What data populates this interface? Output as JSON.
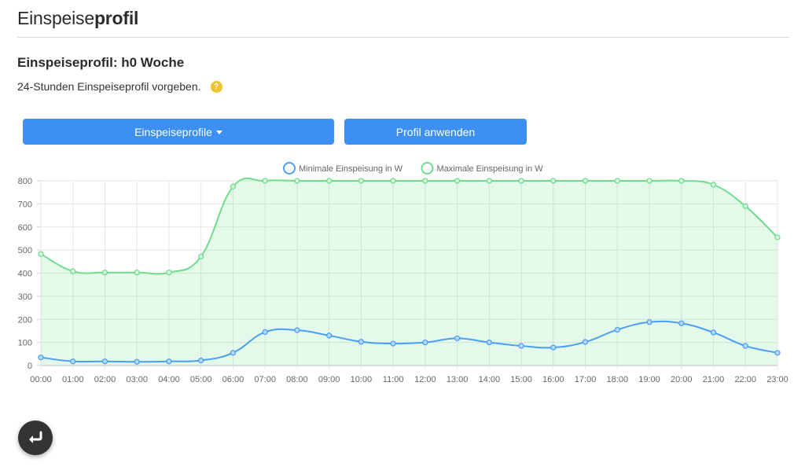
{
  "header": {
    "title_normal": "Einspeise",
    "title_bold": "profil"
  },
  "profile": {
    "title": "Einspeiseprofil: h0 Woche",
    "description": "24-Stunden Einspeiseprofil vorgeben.",
    "help_icon": "?"
  },
  "buttons": {
    "profiles_label": "Einspeiseprofile",
    "apply_label": "Profil anwenden"
  },
  "fab": {
    "icon": "return-arrow-icon"
  },
  "chart_data": {
    "type": "line",
    "x": [
      "00:00",
      "01:00",
      "02:00",
      "03:00",
      "04:00",
      "05:00",
      "06:00",
      "07:00",
      "08:00",
      "09:00",
      "10:00",
      "11:00",
      "12:00",
      "13:00",
      "14:00",
      "15:00",
      "16:00",
      "17:00",
      "18:00",
      "19:00",
      "20:00",
      "21:00",
      "22:00",
      "23:00"
    ],
    "series": [
      {
        "name": "Minimale Einspeisung in W",
        "color": "#4a9ff5",
        "fill": false,
        "values": [
          35,
          18,
          18,
          16,
          18,
          22,
          55,
          145,
          153,
          130,
          103,
          95,
          100,
          118,
          100,
          85,
          78,
          102,
          155,
          188,
          183,
          143,
          85,
          55
        ]
      },
      {
        "name": "Maximale Einspeisung in W",
        "color": "#6fdc8c",
        "fill": true,
        "values": [
          483,
          408,
          403,
          403,
          403,
          472,
          775,
          800,
          800,
          800,
          800,
          800,
          800,
          800,
          800,
          800,
          800,
          800,
          800,
          800,
          800,
          783,
          690,
          555
        ]
      }
    ],
    "yticks": [
      "0",
      "100",
      "200",
      "300",
      "400",
      "500",
      "600",
      "700",
      "800"
    ],
    "ylim": [
      0,
      800
    ],
    "grid": true,
    "legend_position": "top"
  }
}
